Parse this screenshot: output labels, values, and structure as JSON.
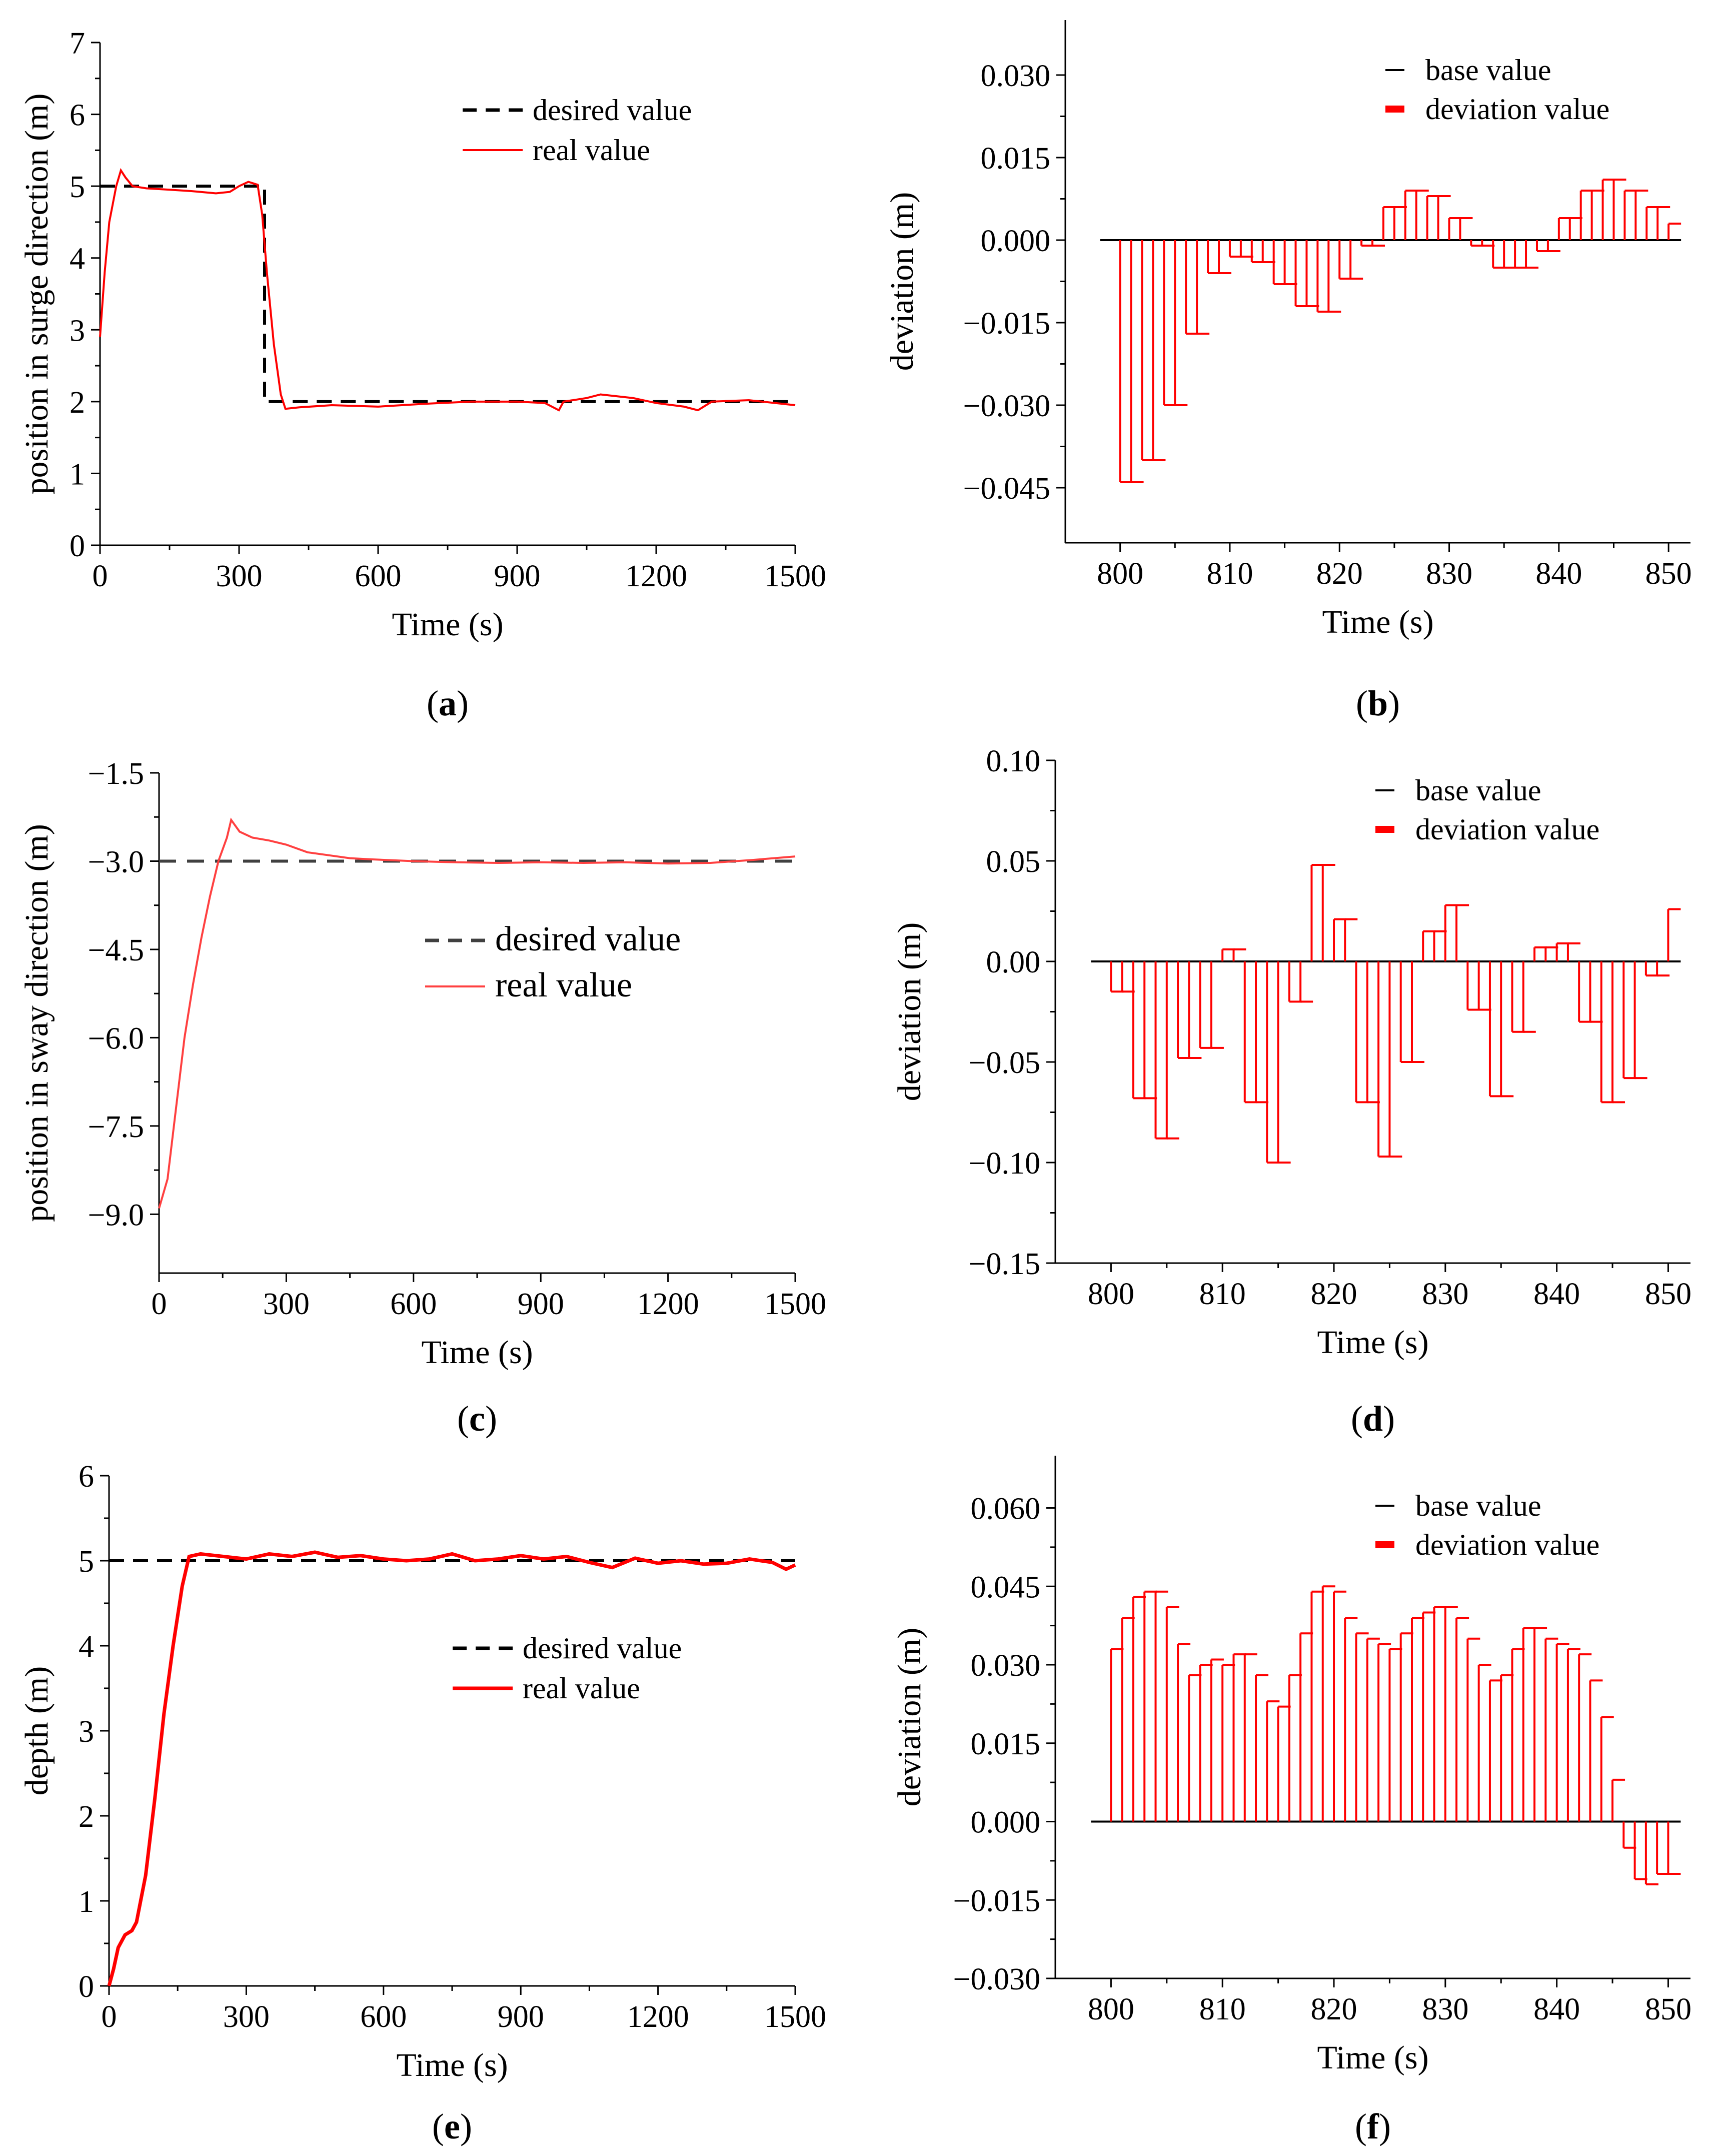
{
  "figure": {
    "panel_captions": [
      "(a)",
      "(b)",
      "(c)",
      "(d)",
      "(e)",
      "(f)"
    ],
    "panel_letters": [
      "a",
      "b",
      "c",
      "d",
      "e",
      "f"
    ]
  },
  "chart_data": [
    {
      "id": "a",
      "type": "line",
      "title": "",
      "xlabel": "Time (s)",
      "ylabel": "position in surge direction (m)",
      "xlim": [
        0,
        1500
      ],
      "ylim": [
        0,
        7
      ],
      "xticks": [
        "0",
        "300",
        "600",
        "900",
        "1200",
        "1500"
      ],
      "yticks": [
        "0",
        "1",
        "2",
        "3",
        "4",
        "5",
        "6",
        "7"
      ],
      "legend": {
        "position": "top-right",
        "entries": [
          "desired value",
          "real value"
        ]
      },
      "series": [
        {
          "name": "desired value",
          "color": "#000000",
          "style": "dashed",
          "points": [
            [
              0,
              5
            ],
            [
              355,
              5
            ],
            [
              355,
              2
            ],
            [
              1500,
              2
            ]
          ]
        },
        {
          "name": "real value",
          "color": "#ff0000",
          "style": "solid",
          "points": [
            [
              0,
              2.9
            ],
            [
              10,
              3.8
            ],
            [
              20,
              4.5
            ],
            [
              35,
              5.0
            ],
            [
              45,
              5.22
            ],
            [
              55,
              5.12
            ],
            [
              70,
              5.0
            ],
            [
              100,
              4.97
            ],
            [
              150,
              4.95
            ],
            [
              200,
              4.93
            ],
            [
              250,
              4.9
            ],
            [
              280,
              4.92
            ],
            [
              300,
              5.0
            ],
            [
              320,
              5.06
            ],
            [
              340,
              5.02
            ],
            [
              350,
              4.6
            ],
            [
              360,
              3.8
            ],
            [
              375,
              2.8
            ],
            [
              390,
              2.1
            ],
            [
              400,
              1.9
            ],
            [
              430,
              1.92
            ],
            [
              500,
              1.95
            ],
            [
              600,
              1.93
            ],
            [
              700,
              1.97
            ],
            [
              800,
              2.0
            ],
            [
              900,
              2.0
            ],
            [
              960,
              1.98
            ],
            [
              990,
              1.88
            ],
            [
              1000,
              2.0
            ],
            [
              1050,
              2.05
            ],
            [
              1080,
              2.1
            ],
            [
              1150,
              2.05
            ],
            [
              1200,
              1.98
            ],
            [
              1260,
              1.93
            ],
            [
              1290,
              1.88
            ],
            [
              1320,
              2.0
            ],
            [
              1400,
              2.02
            ],
            [
              1500,
              1.95
            ]
          ]
        }
      ]
    },
    {
      "id": "b",
      "type": "bar",
      "title": "",
      "xlabel": "Time (s)",
      "ylabel": "deviation (m)",
      "xlim": [
        795,
        852
      ],
      "ylim": [
        -0.055,
        0.04
      ],
      "xticks": [
        "800",
        "810",
        "820",
        "830",
        "840",
        "850"
      ],
      "yticks": [
        "0.030",
        "0.015",
        "0.000",
        "−0.015",
        "−0.030",
        "−0.045"
      ],
      "legend": {
        "position": "top-right",
        "entries": [
          "base value",
          "deviation value"
        ]
      },
      "x": [
        800,
        801,
        802,
        803,
        804,
        805,
        806,
        807,
        808,
        809,
        810,
        811,
        812,
        813,
        814,
        815,
        816,
        817,
        818,
        819,
        820,
        821,
        822,
        823,
        824,
        825,
        826,
        827,
        828,
        829,
        830,
        831,
        832,
        833,
        834,
        835,
        836,
        837,
        838,
        839,
        840,
        841,
        842,
        843,
        844,
        845,
        846,
        847,
        848,
        849,
        850
      ],
      "values": [
        -0.044,
        -0.044,
        -0.04,
        -0.04,
        -0.03,
        -0.03,
        -0.017,
        -0.017,
        -0.006,
        -0.006,
        -0.003,
        -0.003,
        -0.004,
        -0.004,
        -0.008,
        -0.008,
        -0.012,
        -0.012,
        -0.013,
        -0.013,
        -0.007,
        -0.007,
        -0.001,
        -0.001,
        0.006,
        0.006,
        0.009,
        0.009,
        0.008,
        0.008,
        0.004,
        0.004,
        -0.001,
        -0.001,
        -0.005,
        -0.005,
        -0.005,
        -0.005,
        -0.002,
        -0.002,
        0.004,
        0.004,
        0.009,
        0.009,
        0.011,
        0.011,
        0.009,
        0.009,
        0.006,
        0.006,
        0.003
      ]
    },
    {
      "id": "c",
      "type": "line",
      "title": "",
      "xlabel": "Time (s)",
      "ylabel": "position in sway direction (m)",
      "xlim": [
        0,
        1500
      ],
      "ylim": [
        -10.0,
        -1.5
      ],
      "xticks": [
        "0",
        "300",
        "600",
        "900",
        "1200",
        "1500"
      ],
      "yticks": [
        "−1.5",
        "−3.0",
        "−4.5",
        "−6.0",
        "−7.5",
        "−9.0"
      ],
      "legend": {
        "position": "center-right",
        "entries": [
          "desired value",
          "real value"
        ]
      },
      "series": [
        {
          "name": "desired value",
          "color": "#404040",
          "style": "dashed",
          "points": [
            [
              0,
              -3.0
            ],
            [
              1500,
              -3.0
            ]
          ]
        },
        {
          "name": "real value",
          "color": "#ff4040",
          "style": "solid",
          "points": [
            [
              0,
              -8.9
            ],
            [
              20,
              -8.4
            ],
            [
              40,
              -7.2
            ],
            [
              60,
              -6.0
            ],
            [
              80,
              -5.1
            ],
            [
              100,
              -4.3
            ],
            [
              120,
              -3.6
            ],
            [
              140,
              -3.0
            ],
            [
              160,
              -2.6
            ],
            [
              170,
              -2.3
            ],
            [
              190,
              -2.5
            ],
            [
              220,
              -2.6
            ],
            [
              260,
              -2.65
            ],
            [
              300,
              -2.72
            ],
            [
              350,
              -2.85
            ],
            [
              400,
              -2.9
            ],
            [
              450,
              -2.95
            ],
            [
              500,
              -2.97
            ],
            [
              600,
              -3.0
            ],
            [
              700,
              -3.02
            ],
            [
              800,
              -3.03
            ],
            [
              900,
              -3.02
            ],
            [
              1000,
              -3.03
            ],
            [
              1100,
              -3.02
            ],
            [
              1200,
              -3.04
            ],
            [
              1300,
              -3.03
            ],
            [
              1400,
              -2.98
            ],
            [
              1500,
              -2.92
            ]
          ]
        }
      ]
    },
    {
      "id": "d",
      "type": "bar",
      "title": "",
      "xlabel": "Time (s)",
      "ylabel": "deviation (m)",
      "xlim": [
        795,
        852
      ],
      "ylim": [
        -0.15,
        0.1
      ],
      "xticks": [
        "800",
        "810",
        "820",
        "830",
        "840",
        "850"
      ],
      "yticks": [
        "0.10",
        "0.05",
        "0.00",
        "−0.05",
        "−0.10",
        "−0.15"
      ],
      "legend": {
        "position": "top-right",
        "entries": [
          "base value",
          "deviation value"
        ]
      },
      "x": [
        800,
        801,
        802,
        803,
        804,
        805,
        806,
        807,
        808,
        809,
        810,
        811,
        812,
        813,
        814,
        815,
        816,
        817,
        818,
        819,
        820,
        821,
        822,
        823,
        824,
        825,
        826,
        827,
        828,
        829,
        830,
        831,
        832,
        833,
        834,
        835,
        836,
        837,
        838,
        839,
        840,
        841,
        842,
        843,
        844,
        845,
        846,
        847,
        848,
        849,
        850
      ],
      "values": [
        -0.015,
        -0.015,
        -0.068,
        -0.068,
        -0.088,
        -0.088,
        -0.048,
        -0.048,
        -0.043,
        -0.043,
        0.006,
        0.006,
        -0.07,
        -0.07,
        -0.1,
        -0.1,
        -0.02,
        -0.02,
        0.048,
        0.048,
        0.021,
        0.021,
        -0.07,
        -0.07,
        -0.097,
        -0.097,
        -0.05,
        -0.05,
        0.015,
        0.015,
        0.028,
        0.028,
        -0.024,
        -0.024,
        -0.067,
        -0.067,
        -0.035,
        -0.035,
        0.007,
        0.007,
        0.009,
        0.009,
        -0.03,
        -0.03,
        -0.07,
        -0.07,
        -0.058,
        -0.058,
        -0.007,
        -0.007,
        0.026
      ]
    },
    {
      "id": "e",
      "type": "line",
      "title": "",
      "xlabel": "Time (s)",
      "ylabel": "depth (m)",
      "xlim": [
        0,
        1500
      ],
      "ylim": [
        0,
        6
      ],
      "xticks": [
        "0",
        "300",
        "600",
        "900",
        "1200",
        "1500"
      ],
      "yticks": [
        "0",
        "1",
        "2",
        "3",
        "4",
        "5",
        "6"
      ],
      "legend": {
        "position": "center-right",
        "entries": [
          "desired value",
          "real value"
        ]
      },
      "series": [
        {
          "name": "desired value",
          "color": "#000000",
          "style": "dashed",
          "points": [
            [
              0,
              5
            ],
            [
              1500,
              5
            ]
          ]
        },
        {
          "name": "real value",
          "color": "#ff0000",
          "style": "solid",
          "points": [
            [
              0,
              0
            ],
            [
              10,
              0.2
            ],
            [
              20,
              0.45
            ],
            [
              35,
              0.6
            ],
            [
              50,
              0.65
            ],
            [
              60,
              0.75
            ],
            [
              80,
              1.3
            ],
            [
              100,
              2.2
            ],
            [
              120,
              3.2
            ],
            [
              140,
              4.0
            ],
            [
              160,
              4.7
            ],
            [
              175,
              5.05
            ],
            [
              200,
              5.08
            ],
            [
              250,
              5.05
            ],
            [
              300,
              5.02
            ],
            [
              350,
              5.08
            ],
            [
              400,
              5.05
            ],
            [
              450,
              5.1
            ],
            [
              500,
              5.04
            ],
            [
              550,
              5.06
            ],
            [
              600,
              5.02
            ],
            [
              650,
              5.0
            ],
            [
              700,
              5.02
            ],
            [
              750,
              5.08
            ],
            [
              800,
              5.0
            ],
            [
              850,
              5.02
            ],
            [
              900,
              5.06
            ],
            [
              950,
              5.02
            ],
            [
              1000,
              5.05
            ],
            [
              1050,
              4.98
            ],
            [
              1100,
              4.92
            ],
            [
              1150,
              5.03
            ],
            [
              1200,
              4.97
            ],
            [
              1250,
              5.0
            ],
            [
              1300,
              4.96
            ],
            [
              1350,
              4.97
            ],
            [
              1400,
              5.02
            ],
            [
              1450,
              4.98
            ],
            [
              1480,
              4.9
            ],
            [
              1500,
              4.95
            ]
          ]
        }
      ]
    },
    {
      "id": "f",
      "type": "bar",
      "title": "",
      "xlabel": "Time (s)",
      "ylabel": "deviation (m)",
      "xlim": [
        795,
        852
      ],
      "ylim": [
        -0.03,
        0.07
      ],
      "xticks": [
        "800",
        "810",
        "820",
        "830",
        "840",
        "850"
      ],
      "yticks": [
        "0.060",
        "0.045",
        "0.030",
        "0.015",
        "0.000",
        "−0.015",
        "−0.030"
      ],
      "legend": {
        "position": "top-right",
        "entries": [
          "base value",
          "deviation value"
        ]
      },
      "x": [
        800,
        801,
        802,
        803,
        804,
        805,
        806,
        807,
        808,
        809,
        810,
        811,
        812,
        813,
        814,
        815,
        816,
        817,
        818,
        819,
        820,
        821,
        822,
        823,
        824,
        825,
        826,
        827,
        828,
        829,
        830,
        831,
        832,
        833,
        834,
        835,
        836,
        837,
        838,
        839,
        840,
        841,
        842,
        843,
        844,
        845,
        846,
        847,
        848,
        849,
        850
      ],
      "values": [
        0.033,
        0.039,
        0.043,
        0.044,
        0.044,
        0.041,
        0.034,
        0.028,
        0.03,
        0.031,
        0.03,
        0.032,
        0.032,
        0.028,
        0.023,
        0.022,
        0.028,
        0.036,
        0.044,
        0.045,
        0.044,
        0.039,
        0.036,
        0.035,
        0.034,
        0.033,
        0.036,
        0.039,
        0.04,
        0.041,
        0.041,
        0.039,
        0.035,
        0.03,
        0.027,
        0.028,
        0.033,
        0.037,
        0.037,
        0.035,
        0.034,
        0.033,
        0.032,
        0.027,
        0.02,
        0.008,
        -0.005,
        -0.011,
        -0.012,
        -0.01,
        -0.01
      ]
    }
  ]
}
